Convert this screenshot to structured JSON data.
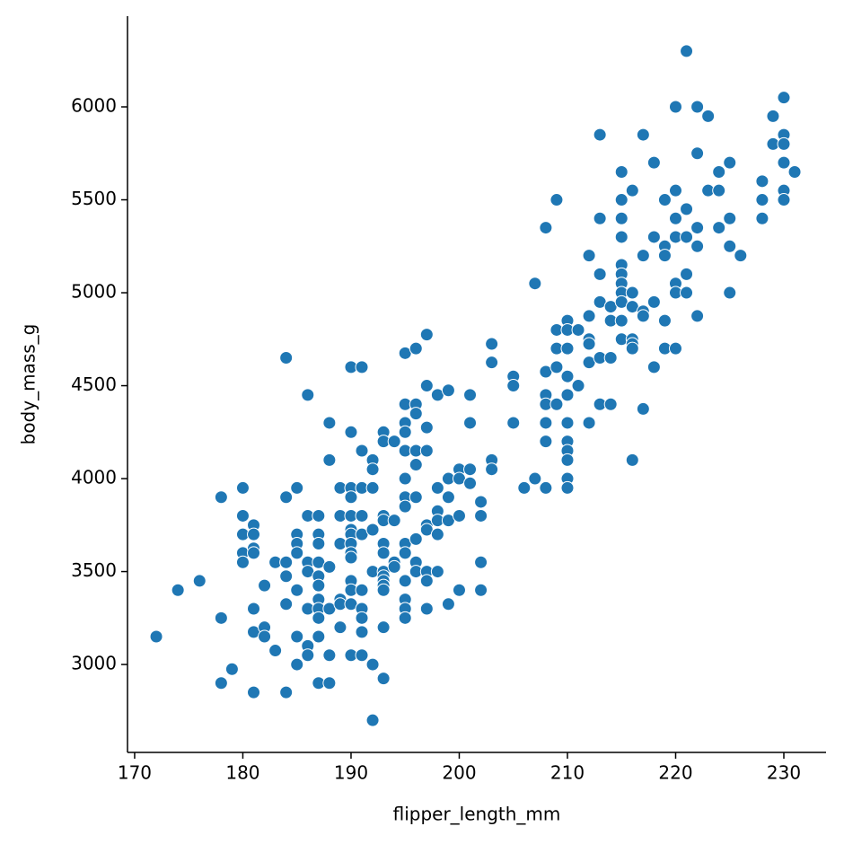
{
  "chart_data": {
    "type": "scatter",
    "x_label": "flipper_length_mm",
    "y_label": "body_mass_g",
    "color": "#1f77b4",
    "x": [
      172,
      174,
      176,
      178,
      178,
      178,
      179,
      180,
      180,
      180,
      180,
      180,
      181,
      181,
      181,
      181,
      181,
      181,
      181,
      182,
      182,
      182,
      183,
      183,
      184,
      184,
      184,
      184,
      184,
      184,
      185,
      185,
      185,
      185,
      185,
      185,
      185,
      186,
      186,
      186,
      186,
      186,
      186,
      186,
      187,
      187,
      187,
      187,
      187,
      187,
      187,
      187,
      187,
      187,
      187,
      188,
      188,
      188,
      188,
      188,
      188,
      189,
      189,
      189,
      189,
      189,
      189,
      190,
      190,
      190,
      190,
      190,
      190,
      190,
      190,
      190,
      190,
      190,
      190,
      190,
      190,
      191,
      191,
      191,
      191,
      191,
      191,
      191,
      191,
      191,
      191,
      192,
      192,
      192,
      192,
      192,
      192,
      192,
      193,
      193,
      193,
      193,
      193,
      193,
      193,
      193,
      193,
      193,
      193,
      193,
      193,
      194,
      194,
      194,
      194,
      195,
      195,
      195,
      195,
      195,
      195,
      195,
      195,
      195,
      195,
      195,
      195,
      195,
      195,
      196,
      196,
      196,
      196,
      196,
      196,
      196,
      196,
      196,
      197,
      197,
      197,
      197,
      197,
      197,
      197,
      197,
      197,
      198,
      198,
      198,
      198,
      198,
      198,
      199,
      199,
      199,
      199,
      199,
      200,
      200,
      200,
      200,
      201,
      201,
      201,
      201,
      202,
      202,
      202,
      202,
      203,
      203,
      203,
      203,
      205,
      205,
      205,
      206,
      207,
      207,
      208,
      208,
      208,
      208,
      208,
      208,
      208,
      209,
      209,
      209,
      209,
      209,
      210,
      210,
      210,
      210,
      210,
      210,
      210,
      210,
      210,
      210,
      210,
      211,
      211,
      212,
      212,
      212,
      212,
      212,
      212,
      213,
      213,
      213,
      213,
      213,
      213,
      214,
      214,
      214,
      214,
      215,
      215,
      215,
      215,
      215,
      215,
      215,
      215,
      215,
      215,
      215,
      216,
      216,
      216,
      216,
      216,
      216,
      216,
      217,
      217,
      217,
      217,
      217,
      218,
      218,
      218,
      218,
      219,
      219,
      219,
      219,
      219,
      220,
      220,
      220,
      220,
      220,
      220,
      220,
      221,
      221,
      221,
      221,
      221,
      222,
      222,
      222,
      222,
      222,
      223,
      223,
      224,
      224,
      224,
      225,
      225,
      225,
      225,
      226,
      228,
      228,
      228,
      229,
      229,
      230,
      230,
      230,
      230,
      230,
      230,
      231
    ],
    "values": [
      3150,
      3400,
      3450,
      3900,
      3250,
      2900,
      2975,
      3950,
      3800,
      3700,
      3600,
      3550,
      3750,
      3700,
      3625,
      3600,
      3300,
      3175,
      2850,
      3425,
      3200,
      3150,
      3550,
      3075,
      4650,
      3900,
      3550,
      3475,
      3325,
      2850,
      3950,
      3700,
      3650,
      3600,
      3400,
      3150,
      3000,
      4450,
      3800,
      3550,
      3500,
      3300,
      3100,
      3050,
      3800,
      3700,
      3650,
      3550,
      3475,
      3425,
      3350,
      3300,
      3250,
      3150,
      2900,
      4300,
      4100,
      3525,
      3300,
      3050,
      2900,
      3950,
      3800,
      3650,
      3350,
      3325,
      3200,
      4600,
      4250,
      3950,
      3900,
      3800,
      3725,
      3700,
      3650,
      3600,
      3575,
      3450,
      3400,
      3325,
      3050,
      4600,
      4150,
      3950,
      3800,
      3700,
      3400,
      3300,
      3250,
      3175,
      3050,
      4100,
      4050,
      3950,
      3725,
      3500,
      3000,
      2700,
      4250,
      4200,
      3800,
      3775,
      3650,
      3600,
      3500,
      3475,
      3450,
      3425,
      3400,
      3200,
      2925,
      4200,
      3775,
      3550,
      3525,
      4675,
      4400,
      4300,
      4250,
      4150,
      4000,
      3900,
      3850,
      3650,
      3600,
      3450,
      3350,
      3300,
      3250,
      4700,
      4400,
      4350,
      4150,
      4075,
      3900,
      3675,
      3550,
      3500,
      4775,
      4500,
      4275,
      4150,
      3750,
      3725,
      3500,
      3450,
      3300,
      4450,
      3950,
      3825,
      3775,
      3700,
      3500,
      4475,
      4000,
      3900,
      3775,
      3325,
      4050,
      4000,
      3800,
      3400,
      4450,
      4300,
      4050,
      3975,
      3875,
      3800,
      3550,
      3400,
      4725,
      4625,
      4100,
      4050,
      4550,
      4500,
      4300,
      3950,
      5050,
      4000,
      5350,
      4575,
      4450,
      4400,
      4300,
      4200,
      3950,
      5500,
      4800,
      4700,
      4600,
      4400,
      4850,
      4800,
      4700,
      4550,
      4450,
      4300,
      4200,
      4150,
      4100,
      4000,
      3950,
      4800,
      4500,
      5200,
      4875,
      4750,
      4725,
      4625,
      4300,
      5850,
      5400,
      5100,
      4950,
      4650,
      4400,
      4925,
      4850,
      4650,
      4400,
      5650,
      5500,
      5400,
      5300,
      5150,
      5100,
      5050,
      5000,
      4950,
      4850,
      4750,
      5550,
      5000,
      4925,
      4750,
      4725,
      4700,
      4100,
      5850,
      5200,
      4900,
      4875,
      4375,
      5700,
      5300,
      4950,
      4600,
      5500,
      5250,
      5200,
      4850,
      4700,
      6000,
      5550,
      5400,
      5300,
      5050,
      5000,
      4700,
      6300,
      5450,
      5300,
      5100,
      5000,
      6000,
      5750,
      5350,
      5250,
      4875,
      5950,
      5550,
      5650,
      5550,
      5350,
      5700,
      5400,
      5250,
      5000,
      5200,
      5600,
      5500,
      5400,
      5950,
      5800,
      6050,
      5850,
      5800,
      5700,
      5550,
      5500,
      5650
    ],
    "xlim": [
      169.34,
      233.9
    ],
    "ylim": [
      2527,
      6488
    ],
    "xticks": [
      170,
      180,
      190,
      200,
      210,
      220,
      230
    ],
    "yticks": [
      3000,
      3500,
      4000,
      4500,
      5000,
      5500,
      6000
    ]
  }
}
